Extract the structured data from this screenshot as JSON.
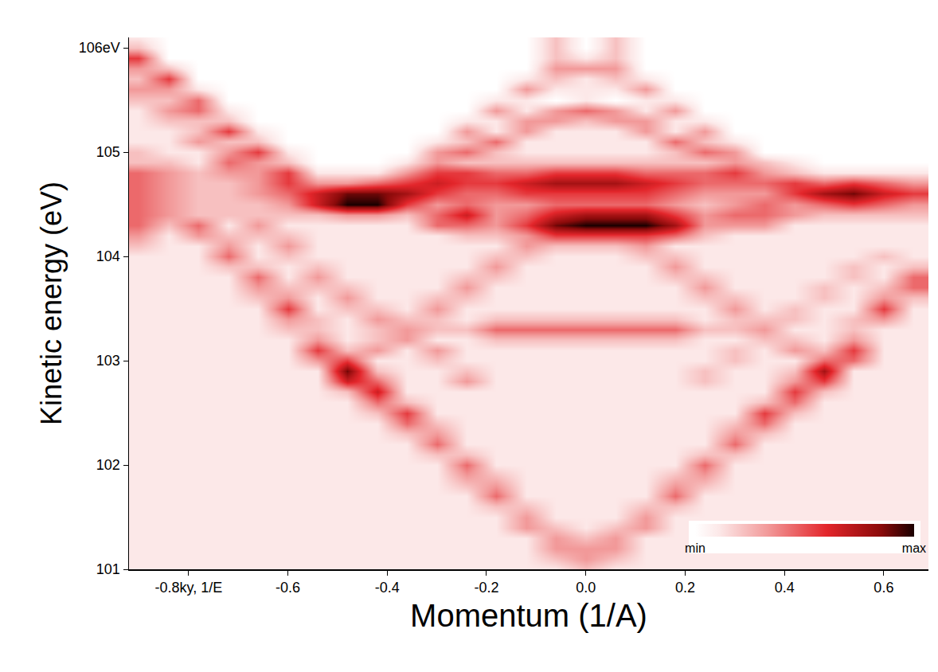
{
  "chart_data": {
    "type": "heatmap",
    "x_label": "Momentum (1/A)",
    "y_label": "Kinetic energy (eV)",
    "grid": false,
    "xlim": [
      -0.92,
      0.69
    ],
    "ylim": [
      101,
      106.1
    ],
    "xticks": [
      {
        "value": -0.8,
        "label": "-0.8ky, 1/E"
      },
      -0.6,
      -0.4,
      -0.2,
      {
        "value": 0,
        "label": "0.0"
      },
      0.2,
      0.4,
      0.6
    ],
    "yticks": [
      101,
      102,
      103,
      104,
      105,
      {
        "value": 106,
        "label": "106eV"
      }
    ],
    "zlim": [
      0,
      9
    ],
    "zticks": [
      {
        "value": 0,
        "label": "min"
      },
      {
        "value": 9,
        "label": "max"
      }
    ],
    "x": [
      -0.9,
      -0.84,
      -0.78,
      -0.72,
      -0.66,
      -0.6,
      -0.54,
      -0.48,
      -0.42,
      -0.36,
      -0.3,
      -0.24,
      -0.18,
      -0.12,
      -0.06,
      0,
      0.06,
      0.12,
      0.18,
      0.24,
      0.3,
      0.36,
      0.42,
      0.48,
      0.54,
      0.6,
      0.66
    ],
    "y": [
      101,
      101.1,
      101.2,
      101.3,
      101.4,
      101.5,
      101.6,
      101.7,
      101.8,
      101.9,
      102,
      102.1,
      102.2,
      102.3,
      102.4,
      102.5,
      102.6,
      102.7,
      102.8,
      102.9,
      103,
      103.1,
      103.2,
      103.3,
      103.4,
      103.5,
      103.6,
      103.7,
      103.8,
      103.9,
      104,
      104.1,
      104.2,
      104.3,
      104.4,
      104.5,
      104.6,
      104.7,
      104.8,
      104.9,
      105,
      105.1,
      105.2,
      105.3,
      105.4,
      105.5,
      105.6,
      105.7,
      105.8,
      105.9,
      106,
      106.1
    ],
    "z": [
      [
        1,
        1,
        1,
        1,
        1,
        1,
        1,
        1,
        1,
        1,
        1,
        1,
        1,
        1,
        1,
        2,
        1,
        1,
        1,
        1,
        1,
        1,
        1,
        1,
        1,
        1,
        1
      ],
      [
        1,
        1,
        1,
        1,
        1,
        1,
        1,
        1,
        1,
        1,
        1,
        1,
        1,
        1,
        2,
        3,
        2,
        1,
        1,
        1,
        1,
        1,
        1,
        1,
        1,
        1,
        1
      ],
      [
        1,
        1,
        1,
        1,
        1,
        1,
        1,
        1,
        1,
        1,
        1,
        1,
        1,
        1,
        3,
        3,
        3,
        1,
        1,
        1,
        1,
        1,
        1,
        1,
        1,
        1,
        1
      ],
      [
        1,
        1,
        1,
        1,
        1,
        1,
        1,
        1,
        1,
        1,
        1,
        1,
        1,
        1,
        3,
        2,
        3,
        1,
        1,
        1,
        1,
        1,
        1,
        1,
        1,
        1,
        1
      ],
      [
        1,
        1,
        1,
        1,
        1,
        1,
        1,
        1,
        1,
        1,
        1,
        1,
        1,
        3,
        2,
        1,
        2,
        3,
        1,
        1,
        1,
        1,
        1,
        1,
        1,
        1,
        1
      ],
      [
        1,
        1,
        1,
        1,
        1,
        1,
        1,
        1,
        1,
        1,
        1,
        1,
        1,
        3,
        1,
        1,
        1,
        3,
        1,
        1,
        1,
        1,
        1,
        1,
        1,
        1,
        1
      ],
      [
        1,
        1,
        1,
        1,
        1,
        1,
        1,
        1,
        1,
        1,
        1,
        1,
        2,
        2,
        1,
        1,
        1,
        2,
        2,
        1,
        1,
        1,
        1,
        1,
        1,
        1,
        1
      ],
      [
        1,
        1,
        1,
        1,
        1,
        1,
        1,
        1,
        1,
        1,
        1,
        1,
        4,
        1,
        1,
        1,
        1,
        1,
        4,
        1,
        1,
        1,
        1,
        1,
        1,
        1,
        1
      ],
      [
        1,
        1,
        1,
        1,
        1,
        1,
        1,
        1,
        1,
        1,
        1,
        2,
        3,
        1,
        1,
        1,
        1,
        1,
        3,
        2,
        1,
        1,
        1,
        1,
        1,
        1,
        1
      ],
      [
        1,
        1,
        1,
        1,
        1,
        1,
        1,
        1,
        1,
        1,
        1,
        3,
        2,
        1,
        1,
        1,
        1,
        1,
        2,
        3,
        1,
        1,
        1,
        1,
        1,
        1,
        1
      ],
      [
        1,
        1,
        1,
        1,
        1,
        1,
        1,
        1,
        1,
        1,
        1,
        4,
        1,
        1,
        1,
        1,
        1,
        1,
        1,
        4,
        1,
        1,
        1,
        1,
        1,
        1,
        1
      ],
      [
        1,
        1,
        1,
        1,
        1,
        1,
        1,
        1,
        1,
        1,
        2,
        2,
        1,
        1,
        1,
        1,
        1,
        1,
        1,
        2,
        2,
        1,
        1,
        1,
        1,
        1,
        1
      ],
      [
        1,
        1,
        1,
        1,
        1,
        1,
        1,
        1,
        1,
        1,
        4,
        1,
        1,
        1,
        1,
        1,
        1,
        1,
        1,
        1,
        4,
        1,
        1,
        1,
        1,
        1,
        1
      ],
      [
        1,
        1,
        1,
        1,
        1,
        1,
        1,
        1,
        1,
        2,
        3,
        1,
        1,
        1,
        1,
        1,
        1,
        1,
        1,
        1,
        3,
        2,
        1,
        1,
        1,
        1,
        1
      ],
      [
        1,
        1,
        1,
        1,
        1,
        1,
        1,
        1,
        1,
        4,
        2,
        1,
        1,
        1,
        1,
        1,
        1,
        1,
        1,
        1,
        2,
        4,
        1,
        1,
        1,
        1,
        1
      ],
      [
        1,
        1,
        1,
        1,
        1,
        1,
        1,
        1,
        2,
        5,
        1,
        1,
        1,
        1,
        1,
        1,
        1,
        1,
        1,
        1,
        1,
        5,
        2,
        1,
        1,
        1,
        1
      ],
      [
        1,
        1,
        1,
        1,
        1,
        1,
        1,
        1,
        4,
        2,
        1,
        1,
        1,
        1,
        1,
        1,
        1,
        1,
        1,
        1,
        1,
        2,
        4,
        1,
        1,
        1,
        1
      ],
      [
        1,
        1,
        1,
        1,
        1,
        1,
        1,
        2,
        6,
        1,
        1,
        1,
        1,
        1,
        1,
        1,
        1,
        1,
        1,
        1,
        1,
        1,
        5,
        2,
        1,
        1,
        1
      ],
      [
        1,
        1,
        1,
        1,
        1,
        1,
        1,
        6,
        4,
        1,
        1,
        3,
        1,
        1,
        1,
        1,
        1,
        1,
        1,
        2,
        1,
        1,
        3,
        5,
        1,
        1,
        1
      ],
      [
        1,
        1,
        1,
        1,
        1,
        1,
        1,
        8,
        2,
        1,
        1,
        2,
        1,
        1,
        1,
        1,
        1,
        1,
        1,
        2,
        1,
        1,
        2,
        7,
        1,
        1,
        1
      ],
      [
        1,
        1,
        1,
        1,
        1,
        1,
        3,
        5,
        1,
        1,
        2,
        1,
        1,
        1,
        1,
        1,
        1,
        1,
        1,
        1,
        2,
        1,
        1,
        4,
        4,
        1,
        1
      ],
      [
        1,
        1,
        1,
        1,
        1,
        1,
        5,
        2,
        3,
        1,
        3,
        1,
        1,
        1,
        1,
        1,
        1,
        1,
        1,
        1,
        2,
        1,
        3,
        2,
        5,
        1,
        1
      ],
      [
        1,
        1,
        1,
        1,
        1,
        1,
        3,
        1,
        2,
        3,
        1,
        1,
        2,
        2,
        2,
        2,
        2,
        2,
        2,
        1,
        1,
        2,
        2,
        1,
        3,
        1,
        1
      ],
      [
        1,
        1,
        1,
        1,
        1,
        2,
        2,
        1,
        2,
        3,
        2,
        2,
        4,
        4,
        4,
        4,
        4,
        4,
        4,
        2,
        2,
        3,
        1,
        1,
        2,
        1,
        1
      ],
      [
        1,
        1,
        1,
        1,
        1,
        3,
        2,
        1,
        3,
        2,
        2,
        1,
        2,
        2,
        2,
        2,
        2,
        2,
        2,
        1,
        2,
        2,
        2,
        1,
        2,
        3,
        1
      ],
      [
        1,
        1,
        1,
        1,
        1,
        5,
        1,
        2,
        2,
        1,
        3,
        1,
        1,
        1,
        1,
        1,
        1,
        1,
        1,
        1,
        3,
        1,
        2,
        1,
        1,
        5,
        1
      ],
      [
        1,
        1,
        1,
        1,
        2,
        3,
        1,
        3,
        1,
        1,
        2,
        2,
        1,
        1,
        1,
        1,
        1,
        1,
        1,
        2,
        2,
        1,
        1,
        2,
        1,
        3,
        2
      ],
      [
        1,
        1,
        1,
        1,
        3,
        2,
        2,
        2,
        1,
        1,
        1,
        3,
        1,
        1,
        1,
        1,
        1,
        1,
        1,
        3,
        1,
        1,
        1,
        2,
        1,
        2,
        4
      ],
      [
        1,
        1,
        1,
        1,
        4,
        1,
        3,
        1,
        1,
        1,
        1,
        2,
        2,
        1,
        1,
        1,
        1,
        1,
        2,
        2,
        1,
        1,
        1,
        1,
        2,
        1,
        4
      ],
      [
        1,
        1,
        1,
        2,
        2,
        1,
        2,
        1,
        1,
        1,
        1,
        1,
        3,
        1,
        1,
        1,
        1,
        1,
        3,
        1,
        1,
        1,
        1,
        1,
        2,
        1,
        2
      ],
      [
        1,
        1,
        1,
        4,
        1,
        2,
        1,
        1,
        1,
        1,
        1,
        1,
        2,
        2,
        1,
        1,
        1,
        2,
        2,
        1,
        1,
        1,
        1,
        1,
        1,
        2,
        1
      ],
      [
        2,
        1,
        1,
        3,
        1,
        3,
        1,
        1,
        1,
        1,
        1,
        1,
        1,
        3,
        2,
        2,
        2,
        3,
        1,
        1,
        1,
        1,
        1,
        1,
        1,
        1,
        1
      ],
      [
        3,
        1,
        3,
        2,
        2,
        2,
        1,
        1,
        1,
        1,
        1,
        2,
        2,
        3,
        5,
        5,
        5,
        5,
        4,
        2,
        1,
        1,
        1,
        1,
        1,
        1,
        1
      ],
      [
        4,
        2,
        4,
        1,
        3,
        1,
        1,
        1,
        1,
        1,
        4,
        4,
        3,
        5,
        8,
        9,
        9,
        9,
        7,
        3,
        3,
        3,
        1,
        1,
        1,
        1,
        1
      ],
      [
        4,
        3,
        2,
        2,
        2,
        2,
        2,
        3,
        3,
        2,
        4,
        6,
        3,
        4,
        6,
        7,
        7,
        7,
        5,
        3,
        4,
        4,
        3,
        2,
        2,
        2,
        2
      ],
      [
        4,
        3,
        2,
        2,
        2,
        3,
        6,
        9,
        9,
        5,
        3,
        4,
        3,
        3,
        4,
        4,
        4,
        4,
        3,
        2,
        3,
        4,
        3,
        4,
        5,
        4,
        3
      ],
      [
        4,
        3,
        2,
        2,
        3,
        4,
        6,
        8,
        8,
        7,
        5,
        4,
        4,
        5,
        5,
        5,
        5,
        5,
        4,
        3,
        3,
        3,
        5,
        7,
        8,
        6,
        5
      ],
      [
        4,
        3,
        2,
        2,
        3,
        5,
        3,
        3,
        4,
        5,
        6,
        5,
        5,
        6,
        7,
        7,
        7,
        6,
        5,
        4,
        4,
        4,
        5,
        4,
        5,
        4,
        3
      ],
      [
        4,
        3,
        2,
        3,
        3,
        5,
        1,
        1,
        1,
        3,
        5,
        5,
        4,
        4,
        5,
        5,
        5,
        4,
        4,
        4,
        5,
        3,
        2,
        1,
        1,
        1,
        1
      ],
      [
        2,
        2,
        1,
        4,
        3,
        2,
        0,
        0,
        0,
        1,
        3,
        2,
        2,
        2,
        2,
        2,
        2,
        2,
        2,
        2,
        3,
        2,
        1,
        0,
        0,
        0,
        0
      ],
      [
        2,
        1,
        1,
        3,
        5,
        1,
        0,
        0,
        0,
        0,
        3,
        4,
        2,
        1,
        1,
        1,
        1,
        1,
        2,
        4,
        3,
        0,
        0,
        0,
        0,
        0,
        0
      ],
      [
        1,
        1,
        3,
        2,
        2,
        0,
        0,
        0,
        0,
        0,
        1,
        2,
        4,
        1,
        1,
        1,
        1,
        1,
        4,
        2,
        1,
        0,
        0,
        0,
        0,
        0,
        0
      ],
      [
        1,
        1,
        2,
        5,
        1,
        0,
        0,
        0,
        0,
        0,
        0,
        3,
        1,
        3,
        1,
        1,
        1,
        3,
        1,
        3,
        0,
        0,
        0,
        0,
        0,
        0,
        0
      ],
      [
        1,
        2,
        2,
        2,
        0,
        0,
        0,
        0,
        0,
        0,
        0,
        1,
        1,
        3,
        3,
        2,
        3,
        3,
        1,
        1,
        0,
        0,
        0,
        0,
        0,
        0,
        0
      ],
      [
        1,
        3,
        4,
        1,
        0,
        0,
        0,
        0,
        0,
        0,
        0,
        0,
        3,
        1,
        3,
        4,
        3,
        1,
        3,
        0,
        0,
        0,
        0,
        0,
        0,
        0,
        0
      ],
      [
        2,
        2,
        4,
        0,
        0,
        0,
        0,
        0,
        0,
        0,
        0,
        0,
        1,
        1,
        0,
        1,
        0,
        1,
        1,
        0,
        0,
        0,
        0,
        0,
        0,
        0,
        0
      ],
      [
        3,
        3,
        1,
        0,
        0,
        0,
        0,
        0,
        0,
        0,
        0,
        0,
        0,
        3,
        1,
        1,
        1,
        3,
        0,
        0,
        0,
        0,
        0,
        0,
        0,
        0,
        0
      ],
      [
        2,
        5,
        0,
        0,
        0,
        0,
        0,
        0,
        0,
        0,
        0,
        0,
        0,
        1,
        2,
        1,
        2,
        1,
        0,
        0,
        0,
        0,
        0,
        0,
        0,
        0,
        0
      ],
      [
        3,
        2,
        0,
        0,
        0,
        0,
        0,
        0,
        0,
        0,
        0,
        0,
        0,
        0,
        3,
        3,
        3,
        0,
        0,
        0,
        0,
        0,
        0,
        0,
        0,
        0,
        0
      ],
      [
        5,
        0,
        0,
        0,
        0,
        0,
        0,
        0,
        0,
        0,
        0,
        0,
        0,
        0,
        2,
        1,
        2,
        0,
        0,
        0,
        0,
        0,
        0,
        0,
        0,
        0,
        0
      ],
      [
        2,
        0,
        0,
        0,
        0,
        0,
        0,
        0,
        0,
        0,
        0,
        0,
        0,
        0,
        2,
        0,
        2,
        0,
        0,
        0,
        0,
        0,
        0,
        0,
        0,
        0,
        0
      ],
      [
        1,
        0,
        0,
        0,
        0,
        0,
        0,
        0,
        0,
        0,
        0,
        0,
        0,
        0,
        2,
        0,
        2,
        0,
        0,
        0,
        0,
        0,
        0,
        0,
        0,
        0,
        0
      ]
    ]
  }
}
